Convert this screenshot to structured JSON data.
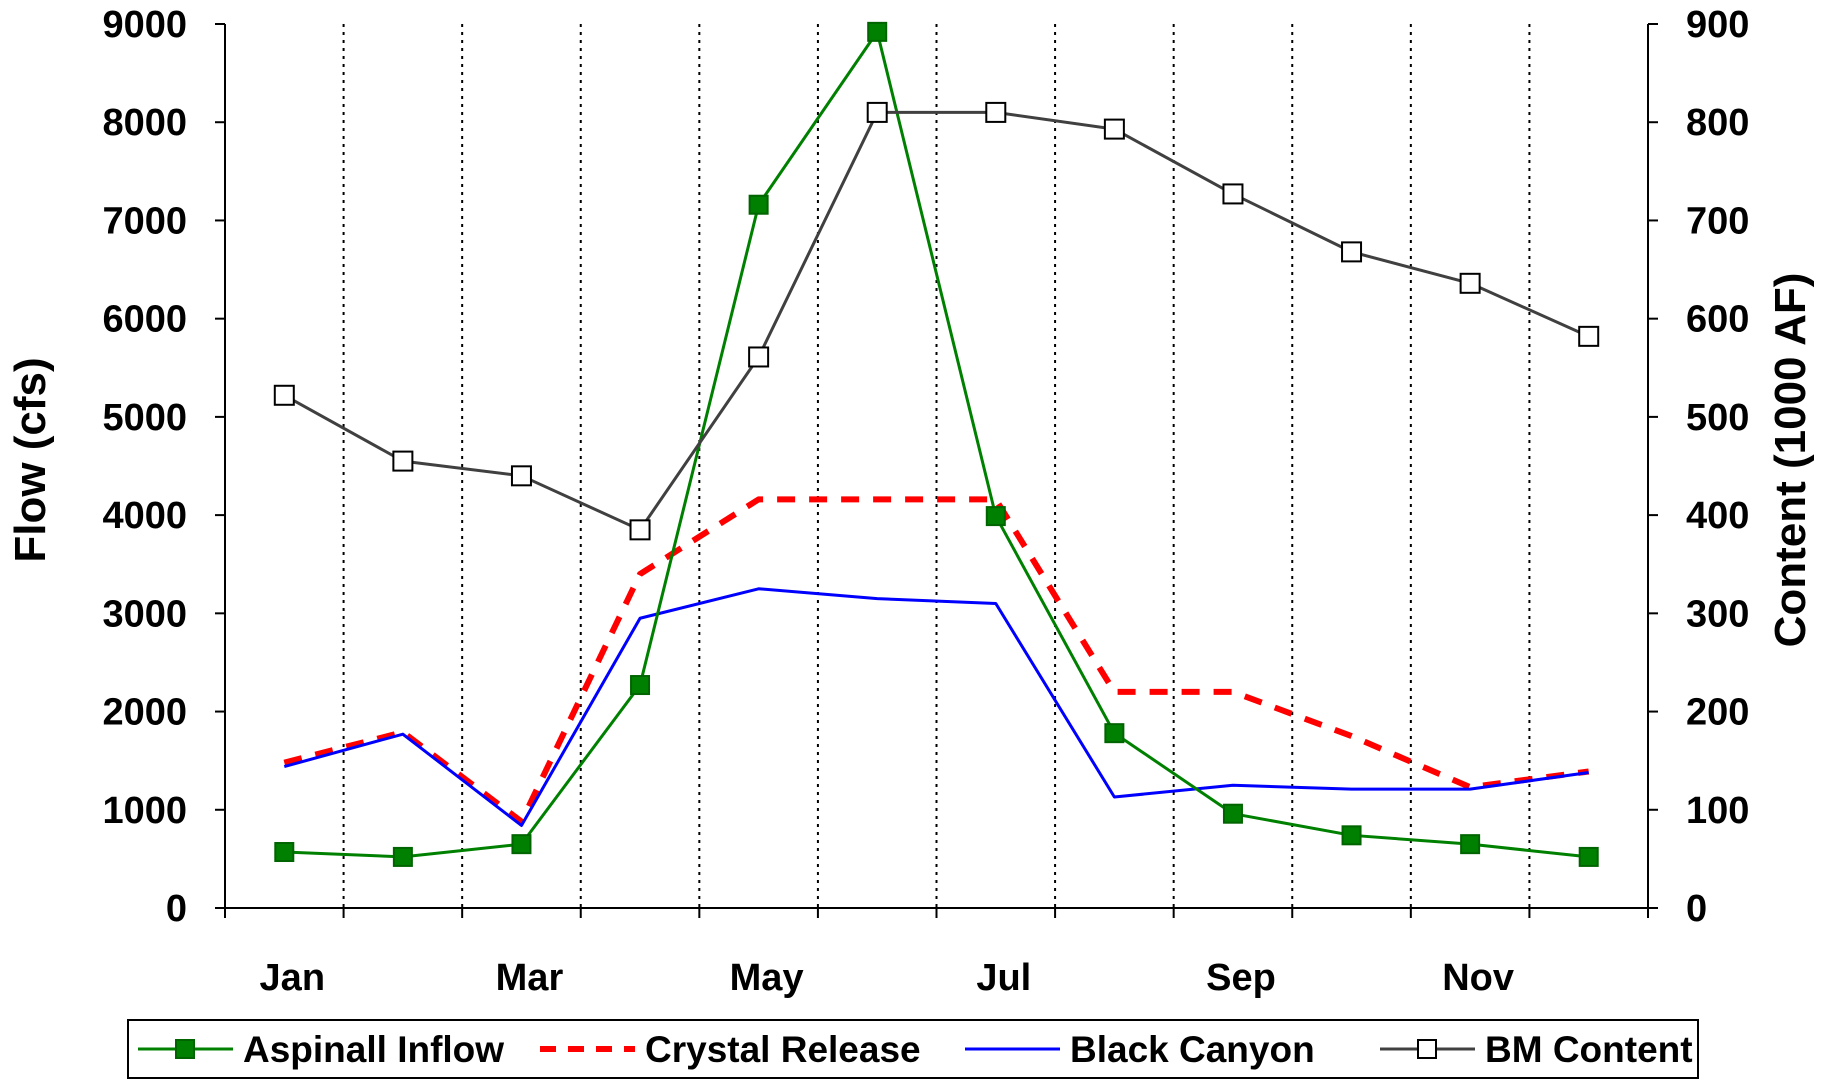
{
  "chart_data": {
    "type": "line",
    "title": "",
    "x_tick_labels": [
      "Jan",
      "Mar",
      "May",
      "Jul",
      "Sep",
      "Nov"
    ],
    "months": 12,
    "ylabel_left": "Flow (cfs)",
    "ylabel_right": "Content (1000 AF)",
    "ylim_left": [
      0,
      9000
    ],
    "ylim_right": [
      0,
      900
    ],
    "y_ticks_left": [
      "0",
      "1000",
      "2000",
      "3000",
      "4000",
      "5000",
      "6000",
      "7000",
      "8000",
      "9000"
    ],
    "y_ticks_right": [
      "0",
      "100",
      "200",
      "300",
      "400",
      "500",
      "600",
      "700",
      "800",
      "900"
    ],
    "grid": "vertical dotted",
    "legend_position": "bottom",
    "series": [
      {
        "name": "Aspinall Inflow",
        "axis": "left",
        "color": "#008000",
        "style": "solid",
        "marker": "filled-square",
        "values": [
          570,
          520,
          650,
          2270,
          7160,
          8920,
          3990,
          1780,
          960,
          740,
          650,
          520
        ]
      },
      {
        "name": "Crystal Release",
        "axis": "left",
        "color": "#ff0000",
        "style": "dashed",
        "marker": "none",
        "values": [
          1480,
          1790,
          880,
          3400,
          4160,
          4160,
          4160,
          2200,
          2200,
          1750,
          1230,
          1390
        ]
      },
      {
        "name": "Black Canyon",
        "axis": "left",
        "color": "#0000ff",
        "style": "solid",
        "marker": "none",
        "values": [
          1440,
          1770,
          840,
          2950,
          3250,
          3150,
          3100,
          1130,
          1250,
          1210,
          1210,
          1380
        ]
      },
      {
        "name": "BM Content",
        "axis": "right",
        "color": "#404040",
        "style": "solid",
        "marker": "open-square",
        "values": [
          522,
          455,
          440,
          385,
          561,
          810,
          810,
          793,
          727,
          668,
          636,
          582
        ]
      }
    ]
  }
}
